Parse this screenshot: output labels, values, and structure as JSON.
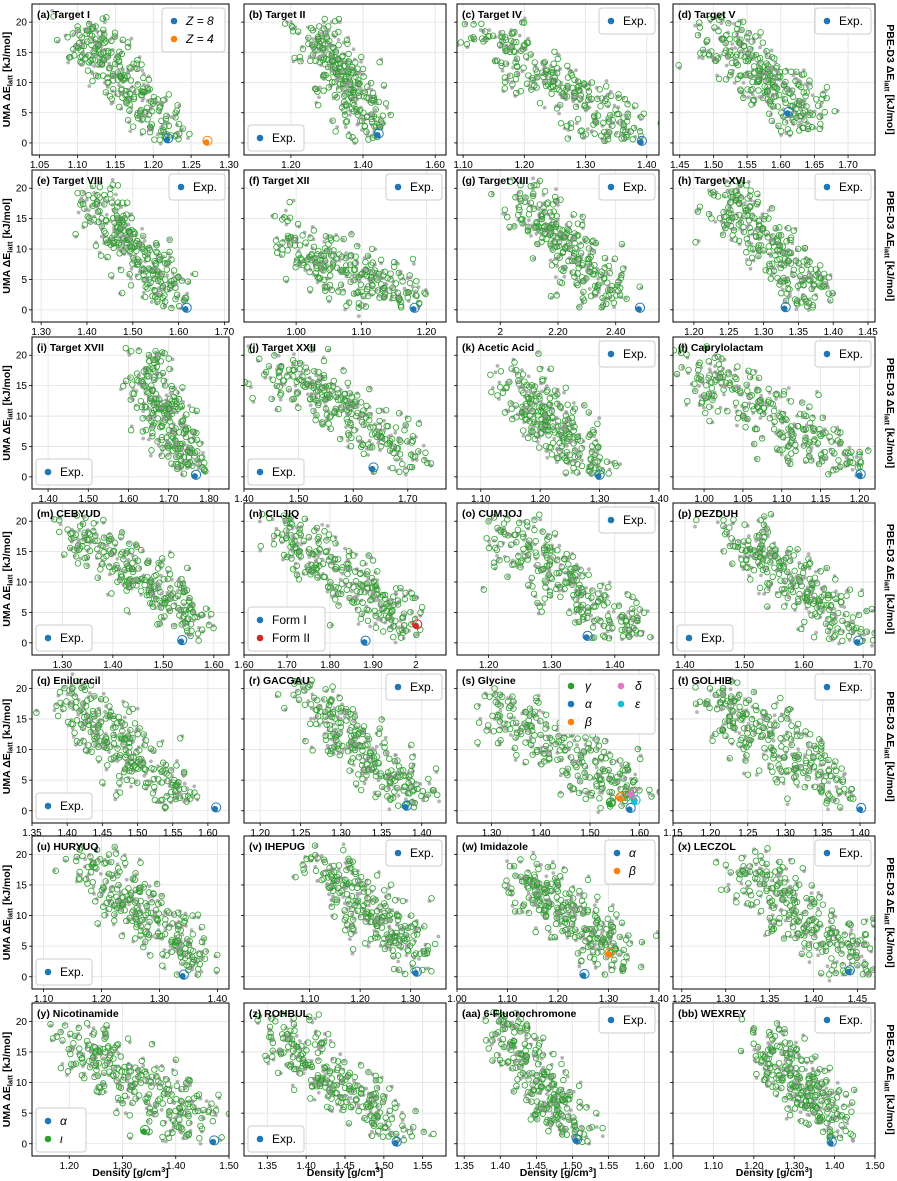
{
  "figure": {
    "left_ylabel": "UMA ΔE",
    "right_ylabel": "PBE-D3 ΔE",
    "ylabel_sub": "latt",
    "ylabel_unit": " [kJ/mol]",
    "xlabel": "Density [g/cm",
    "xlabel_sup": "3",
    "xlabel_end": "]",
    "colors": {
      "uma": "#2ca02c",
      "pbe": "#9a9a9a",
      "exp_blue": "#1f77b4",
      "orange": "#ff7f0e",
      "red": "#d62728",
      "pink": "#e377c2",
      "cyan": "#17becf",
      "green": "#2ca02c"
    }
  },
  "chart_data": [
    {
      "type": "scatter",
      "title": "(a) Target I",
      "xlim": [
        1.04,
        1.3
      ],
      "xticks": [
        1.05,
        1.1,
        1.15,
        1.2,
        1.25,
        1.3
      ],
      "ylim": [
        -2,
        23
      ],
      "yticks": [
        0,
        5,
        10,
        15,
        20
      ],
      "trend": [
        1.1,
        19,
        1.23,
        0
      ],
      "legend": "top-right",
      "exp": [
        {
          "label": "Z = 8",
          "color": "exp_blue",
          "x": 1.218,
          "y": 0.5
        },
        {
          "label": "Z = 4",
          "color": "orange",
          "x": 1.27,
          "y": 0.1
        }
      ]
    },
    {
      "type": "scatter",
      "title": "(b) Target II",
      "xlim": [
        1.07,
        1.63
      ],
      "xticks": [
        1.2,
        1.4,
        1.6
      ],
      "ylim": [
        -2,
        23
      ],
      "yticks": [
        0,
        5,
        10,
        15,
        20
      ],
      "trend": [
        1.25,
        19,
        1.45,
        1
      ],
      "legend": "bottom-left",
      "exp": [
        {
          "label": "Exp.",
          "color": "exp_blue",
          "x": 1.44,
          "y": 1.3
        }
      ]
    },
    {
      "type": "scatter",
      "title": "(c) Target IV",
      "xlim": [
        1.09,
        1.42
      ],
      "xticks": [
        1.1,
        1.2,
        1.3,
        1.4
      ],
      "ylim": [
        -2,
        23
      ],
      "yticks": [
        0,
        5,
        10,
        15,
        20
      ],
      "trend": [
        1.13,
        18,
        1.38,
        1
      ],
      "legend": "top-right",
      "exp": [
        {
          "label": "Exp.",
          "color": "exp_blue",
          "x": 1.39,
          "y": 0.1
        }
      ]
    },
    {
      "type": "scatter",
      "title": "(d) Target V",
      "xlim": [
        1.44,
        1.74
      ],
      "xticks": [
        1.45,
        1.5,
        1.55,
        1.6,
        1.65,
        1.7
      ],
      "ylim": [
        -2,
        23
      ],
      "yticks": [
        0,
        5,
        10,
        15,
        20
      ],
      "trend": [
        1.5,
        18,
        1.65,
        4
      ],
      "legend": "top-right",
      "exp": [
        {
          "label": "Exp.",
          "color": "exp_blue",
          "x": 1.61,
          "y": 4.9
        }
      ]
    },
    {
      "type": "scatter",
      "title": "(e) Target VIII",
      "xlim": [
        1.28,
        1.71
      ],
      "xticks": [
        1.3,
        1.4,
        1.5,
        1.6,
        1.7
      ],
      "ylim": [
        -2,
        23
      ],
      "yticks": [
        0,
        5,
        10,
        15,
        20
      ],
      "trend": [
        1.4,
        19,
        1.6,
        1
      ],
      "legend": "top-right",
      "exp": [
        {
          "label": "Exp.",
          "color": "exp_blue",
          "x": 1.615,
          "y": 0.1
        }
      ]
    },
    {
      "type": "scatter",
      "title": "(f) Target XII",
      "xlim": [
        0.92,
        1.23
      ],
      "xticks": [
        1.0,
        1.1,
        1.2
      ],
      "ylim": [
        -2,
        23
      ],
      "yticks": [
        0,
        5,
        10,
        15,
        20
      ],
      "trend": [
        0.98,
        12,
        1.18,
        1
      ],
      "legend": "top-right",
      "exp": [
        {
          "label": "Exp.",
          "color": "exp_blue",
          "x": 1.18,
          "y": 0.1
        }
      ]
    },
    {
      "type": "scatter",
      "title": "(g) Target XIII",
      "xlim": [
        1.85,
        2.55
      ],
      "xticks": [
        2.0,
        2.2,
        2.4
      ],
      "ylim": [
        -2,
        23
      ],
      "yticks": [
        0,
        5,
        10,
        15,
        20
      ],
      "trend": [
        2.05,
        19,
        2.4,
        2
      ],
      "legend": "top-right",
      "exp": [
        {
          "label": "Exp.",
          "color": "exp_blue",
          "x": 2.48,
          "y": 0.1
        }
      ]
    },
    {
      "type": "scatter",
      "title": "(h) Target XVI",
      "xlim": [
        1.17,
        1.46
      ],
      "xticks": [
        1.2,
        1.25,
        1.3,
        1.35,
        1.4,
        1.45
      ],
      "ylim": [
        -2,
        23
      ],
      "yticks": [
        0,
        5,
        10,
        15,
        20
      ],
      "trend": [
        1.24,
        19,
        1.38,
        2
      ],
      "legend": "top-right",
      "exp": [
        {
          "label": "Exp.",
          "color": "exp_blue",
          "x": 1.33,
          "y": 0.2
        }
      ]
    },
    {
      "type": "scatter",
      "title": "(i) Target XVII",
      "xlim": [
        1.36,
        1.85
      ],
      "xticks": [
        1.4,
        1.5,
        1.6,
        1.7,
        1.8
      ],
      "ylim": [
        -2,
        23
      ],
      "yticks": [
        0,
        5,
        10,
        15,
        20
      ],
      "trend": [
        1.63,
        19,
        1.76,
        1
      ],
      "legend": "bottom-left",
      "exp": [
        {
          "label": "Exp.",
          "color": "exp_blue",
          "x": 1.765,
          "y": 0.1
        }
      ]
    },
    {
      "type": "scatter",
      "title": "(j) Target XXII",
      "xlim": [
        1.4,
        1.77
      ],
      "xticks": [
        1.4,
        1.5,
        1.6,
        1.7
      ],
      "ylim": [
        -2,
        23
      ],
      "yticks": [
        0,
        5,
        10,
        15,
        20
      ],
      "trend": [
        1.45,
        19,
        1.72,
        3
      ],
      "legend": "bottom-left",
      "exp": [
        {
          "label": "Exp.",
          "color": "exp_blue",
          "x": 1.635,
          "y": 1.3
        }
      ]
    },
    {
      "type": "scatter",
      "title": "(k) Acetic Acid",
      "xlim": [
        1.06,
        1.4
      ],
      "xticks": [
        1.1,
        1.2,
        1.3,
        1.4
      ],
      "ylim": [
        -2,
        23
      ],
      "yticks": [
        0,
        5,
        10,
        15,
        20
      ],
      "trend": [
        1.15,
        16,
        1.3,
        0.5
      ],
      "legend": "top-right",
      "exp": [
        {
          "label": "Exp.",
          "color": "exp_blue",
          "x": 1.298,
          "y": 0.1
        }
      ]
    },
    {
      "type": "scatter",
      "title": "(l) Caprylolactam",
      "xlim": [
        0.96,
        1.22
      ],
      "xticks": [
        1.0,
        1.05,
        1.1,
        1.15,
        1.2
      ],
      "ylim": [
        -2,
        23
      ],
      "yticks": [
        0,
        5,
        10,
        15,
        20
      ],
      "trend": [
        0.98,
        18,
        1.2,
        1
      ],
      "legend": "top-right",
      "exp": [
        {
          "label": "Exp.",
          "color": "exp_blue",
          "x": 1.2,
          "y": 0.2
        }
      ]
    },
    {
      "type": "scatter",
      "title": "(m) CEBYUD",
      "xlim": [
        1.24,
        1.63
      ],
      "xticks": [
        1.3,
        1.4,
        1.5,
        1.6
      ],
      "ylim": [
        -2,
        23
      ],
      "yticks": [
        0,
        5,
        10,
        15,
        20
      ],
      "trend": [
        1.32,
        19,
        1.58,
        3
      ],
      "legend": "bottom-left",
      "exp": [
        {
          "label": "Exp.",
          "color": "exp_blue",
          "x": 1.535,
          "y": 0.2
        }
      ]
    },
    {
      "type": "scatter",
      "title": "(n) CILJIQ",
      "xlim": [
        1.6,
        2.07
      ],
      "xticks": [
        1.6,
        1.7,
        1.8,
        1.9,
        2.0
      ],
      "ylim": [
        -2,
        23
      ],
      "yticks": [
        0,
        5,
        10,
        15,
        20
      ],
      "trend": [
        1.68,
        19,
        1.98,
        3
      ],
      "legend": "bottom-left",
      "exp": [
        {
          "label": "Form I",
          "color": "exp_blue",
          "x": 1.88,
          "y": 0.1
        },
        {
          "label": "Form II",
          "color": "red",
          "x": 2.0,
          "y": 2.8
        }
      ]
    },
    {
      "type": "scatter",
      "title": "(o) CUMJOJ",
      "xlim": [
        1.15,
        1.47
      ],
      "xticks": [
        1.2,
        1.3,
        1.4
      ],
      "ylim": [
        -2,
        23
      ],
      "yticks": [
        0,
        5,
        10,
        15,
        20
      ],
      "trend": [
        1.22,
        18,
        1.43,
        1
      ],
      "legend": "top-right",
      "exp": [
        {
          "label": "Exp.",
          "color": "exp_blue",
          "x": 1.355,
          "y": 0.9
        }
      ]
    },
    {
      "type": "scatter",
      "title": "(p) DEZDUH",
      "xlim": [
        1.38,
        1.72
      ],
      "xticks": [
        1.4,
        1.5,
        1.6,
        1.7
      ],
      "ylim": [
        -2,
        23
      ],
      "yticks": [
        0,
        5,
        10,
        15,
        20
      ],
      "trend": [
        1.48,
        19,
        1.7,
        1
      ],
      "legend": "bottom-left",
      "exp": [
        {
          "label": "Exp.",
          "color": "exp_blue",
          "x": 1.69,
          "y": 0.1
        }
      ]
    },
    {
      "type": "scatter",
      "title": "(q) Eniluracil",
      "xlim": [
        1.35,
        1.63
      ],
      "xticks": [
        1.35,
        1.4,
        1.45,
        1.5,
        1.55,
        1.6
      ],
      "ylim": [
        -2,
        23
      ],
      "yticks": [
        0,
        5,
        10,
        15,
        20
      ],
      "trend": [
        1.4,
        18,
        1.56,
        2
      ],
      "legend": "bottom-left",
      "exp": [
        {
          "label": "Exp.",
          "color": "exp_blue",
          "x": 1.61,
          "y": 0.3
        }
      ]
    },
    {
      "type": "scatter",
      "title": "(r) GACGAU",
      "xlim": [
        1.18,
        1.43
      ],
      "xticks": [
        1.2,
        1.25,
        1.3,
        1.35,
        1.4
      ],
      "ylim": [
        -2,
        23
      ],
      "yticks": [
        0,
        5,
        10,
        15,
        20
      ],
      "trend": [
        1.25,
        20,
        1.4,
        1
      ],
      "legend": "top-right",
      "exp": [
        {
          "label": "Exp.",
          "color": "exp_blue",
          "x": 1.38,
          "y": 0.6
        }
      ]
    },
    {
      "type": "scatter",
      "title": "(s) Glycine",
      "xlim": [
        1.23,
        1.64
      ],
      "xticks": [
        1.3,
        1.4,
        1.5,
        1.6
      ],
      "ylim": [
        -2,
        23
      ],
      "yticks": [
        0,
        5,
        10,
        15,
        20
      ],
      "trend": [
        1.3,
        17,
        1.6,
        2
      ],
      "legend": "top-right",
      "exp": [
        {
          "label": "γ",
          "color": "green",
          "x": 1.54,
          "y": 1.1
        },
        {
          "label": "α",
          "color": "exp_blue",
          "x": 1.58,
          "y": 0.2
        },
        {
          "label": "β",
          "color": "orange",
          "x": 1.56,
          "y": 2.0
        },
        {
          "label": "δ",
          "color": "pink",
          "x": 1.585,
          "y": 2.6
        },
        {
          "label": "ε",
          "color": "cyan",
          "x": 1.59,
          "y": 1.5
        }
      ]
    },
    {
      "type": "scatter",
      "title": "(t) GOLHIB",
      "xlim": [
        1.15,
        1.42
      ],
      "xticks": [
        1.15,
        1.2,
        1.25,
        1.3,
        1.35,
        1.4
      ],
      "ylim": [
        -2,
        23
      ],
      "yticks": [
        0,
        5,
        10,
        15,
        20
      ],
      "trend": [
        1.2,
        19,
        1.38,
        3
      ],
      "legend": "top-right",
      "exp": [
        {
          "label": "Exp.",
          "color": "exp_blue",
          "x": 1.4,
          "y": 0.2
        }
      ]
    },
    {
      "type": "scatter",
      "title": "(u) HURYUQ",
      "xlim": [
        1.08,
        1.42
      ],
      "xticks": [
        1.1,
        1.2,
        1.3,
        1.4
      ],
      "ylim": [
        -2,
        23
      ],
      "yticks": [
        0,
        5,
        10,
        15,
        20
      ],
      "trend": [
        1.17,
        19,
        1.37,
        2
      ],
      "legend": "bottom-left",
      "exp": [
        {
          "label": "Exp.",
          "color": "exp_blue",
          "x": 1.34,
          "y": 0.1
        }
      ]
    },
    {
      "type": "scatter",
      "title": "(v) IHEPUG",
      "xlim": [
        0.97,
        1.37
      ],
      "xticks": [
        1.1,
        1.2,
        1.3
      ],
      "ylim": [
        -2,
        23
      ],
      "yticks": [
        0,
        5,
        10,
        15,
        20
      ],
      "trend": [
        1.12,
        19,
        1.33,
        1
      ],
      "legend": "top-right",
      "exp": [
        {
          "label": "Exp.",
          "color": "exp_blue",
          "x": 1.31,
          "y": 0.6
        }
      ]
    },
    {
      "type": "scatter",
      "title": "(w) Imidazole",
      "xlim": [
        1.0,
        1.4
      ],
      "xticks": [
        1.0,
        1.1,
        1.2,
        1.3,
        1.4
      ],
      "ylim": [
        -2,
        23
      ],
      "yticks": [
        0,
        5,
        10,
        15,
        20
      ],
      "trend": [
        1.13,
        16,
        1.33,
        4
      ],
      "legend": "top-right",
      "exp": [
        {
          "label": "α",
          "color": "exp_blue",
          "x": 1.25,
          "y": 0.2
        },
        {
          "label": "β",
          "color": "orange",
          "x": 1.3,
          "y": 3.7
        }
      ]
    },
    {
      "type": "scatter",
      "title": "(x) LECZOL",
      "xlim": [
        1.24,
        1.47
      ],
      "xticks": [
        1.25,
        1.3,
        1.35,
        1.4,
        1.45
      ],
      "ylim": [
        -2,
        23
      ],
      "yticks": [
        0,
        5,
        10,
        15,
        20
      ],
      "trend": [
        1.32,
        18,
        1.46,
        2
      ],
      "legend": "top-right",
      "exp": [
        {
          "label": "Exp.",
          "color": "exp_blue",
          "x": 1.44,
          "y": 0.8
        }
      ]
    },
    {
      "type": "scatter",
      "title": "(y) Nicotinamide",
      "xlim": [
        1.13,
        1.5
      ],
      "xticks": [
        1.2,
        1.3,
        1.4,
        1.5
      ],
      "ylim": [
        -2,
        23
      ],
      "yticks": [
        0,
        5,
        10,
        15,
        20
      ],
      "trend": [
        1.2,
        17,
        1.45,
        3
      ],
      "legend": "bottom-left",
      "exp": [
        {
          "label": "α",
          "color": "exp_blue",
          "x": 1.47,
          "y": 0.3
        },
        {
          "label": "ι",
          "color": "green",
          "x": 1.34,
          "y": 2.0
        }
      ]
    },
    {
      "type": "scatter",
      "title": "(z) ROHBUL",
      "xlim": [
        1.32,
        1.58
      ],
      "xticks": [
        1.35,
        1.4,
        1.45,
        1.5,
        1.55
      ],
      "ylim": [
        -2,
        23
      ],
      "yticks": [
        0,
        5,
        10,
        15,
        20
      ],
      "trend": [
        1.36,
        18,
        1.52,
        2
      ],
      "legend": "bottom-left",
      "exp": [
        {
          "label": "Exp.",
          "color": "exp_blue",
          "x": 1.515,
          "y": 0.1
        }
      ]
    },
    {
      "type": "scatter",
      "title": "(aa) 6-Fluorochromone",
      "xlim": [
        1.34,
        1.62
      ],
      "xticks": [
        1.35,
        1.4,
        1.45,
        1.5,
        1.55,
        1.6
      ],
      "ylim": [
        -2,
        23
      ],
      "yticks": [
        0,
        5,
        10,
        15,
        20
      ],
      "trend": [
        1.4,
        20,
        1.51,
        0.5
      ],
      "legend": "top-right",
      "exp": [
        {
          "label": "Exp.",
          "color": "exp_blue",
          "x": 1.505,
          "y": 0.5
        }
      ]
    },
    {
      "type": "scatter",
      "title": "(bb) WEXREY",
      "xlim": [
        1.0,
        1.5
      ],
      "xticks": [
        1.0,
        1.1,
        1.2,
        1.3,
        1.4,
        1.5
      ],
      "ylim": [
        -2,
        23
      ],
      "yticks": [
        0,
        5,
        10,
        15,
        20
      ],
      "trend": [
        1.22,
        16,
        1.42,
        3
      ],
      "legend": "top-right",
      "exp": [
        {
          "label": "Exp.",
          "color": "exp_blue",
          "x": 1.39,
          "y": 0.1
        }
      ]
    }
  ]
}
